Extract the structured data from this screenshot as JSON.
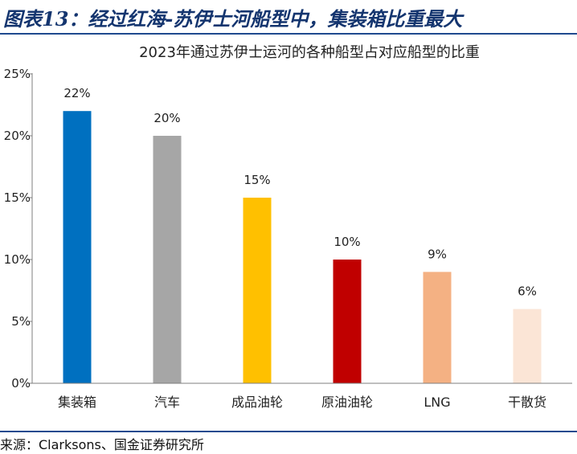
{
  "figure": {
    "title": "图表13：经过红海-苏伊士河船型中，集装箱比重最大",
    "source": "来源：Clarksons、国金证券研究所"
  },
  "chart_data": {
    "type": "bar",
    "title": "2023年通过苏伊士运河的各种船型占对应船型的比重",
    "categories": [
      "集装箱",
      "汽车",
      "成品油轮",
      "原油油轮",
      "LNG",
      "干散货"
    ],
    "values": [
      22,
      20,
      15,
      10,
      9,
      6
    ],
    "data_labels": [
      "22%",
      "20%",
      "15%",
      "10%",
      "9%",
      "6%"
    ],
    "colors": [
      "#0070c0",
      "#a6a6a6",
      "#ffc000",
      "#c00000",
      "#f4b183",
      "#fbe5d6"
    ],
    "ylim": [
      0,
      25
    ],
    "yticks": [
      0,
      5,
      10,
      15,
      20,
      25
    ],
    "ytick_labels": [
      "0%",
      "5%",
      "10%",
      "15%",
      "20%",
      "25%"
    ],
    "xlabel": "",
    "ylabel": "",
    "grid": false,
    "legend": false
  }
}
